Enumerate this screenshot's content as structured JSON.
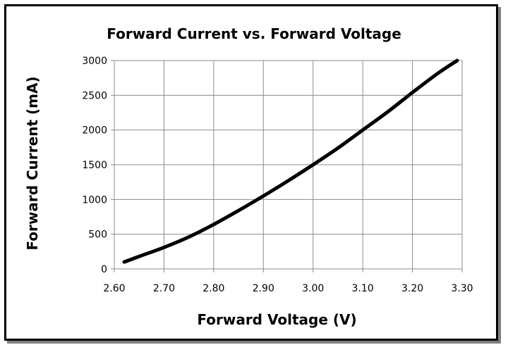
{
  "chart_data": {
    "type": "line",
    "title": "Forward Current vs. Forward Voltage",
    "xlabel": "Forward Voltage (V)",
    "ylabel": "Forward Current (mA)",
    "xlim": [
      2.6,
      3.3
    ],
    "ylim": [
      0,
      3000
    ],
    "x_ticks": [
      "2.60",
      "2.70",
      "2.80",
      "2.90",
      "3.00",
      "3.10",
      "3.20",
      "3.30"
    ],
    "y_ticks": [
      "0",
      "500",
      "1000",
      "1500",
      "2000",
      "2500",
      "3000"
    ],
    "grid": true,
    "legend": "none",
    "series": [
      {
        "color": "#000000",
        "x": [
          2.62,
          2.65,
          2.7,
          2.75,
          2.8,
          2.85,
          2.9,
          2.95,
          3.0,
          3.05,
          3.1,
          3.15,
          3.2,
          3.25,
          3.29
        ],
        "y": [
          100,
          180,
          310,
          460,
          640,
          840,
          1050,
          1270,
          1500,
          1740,
          2000,
          2260,
          2540,
          2810,
          3000
        ]
      }
    ]
  }
}
